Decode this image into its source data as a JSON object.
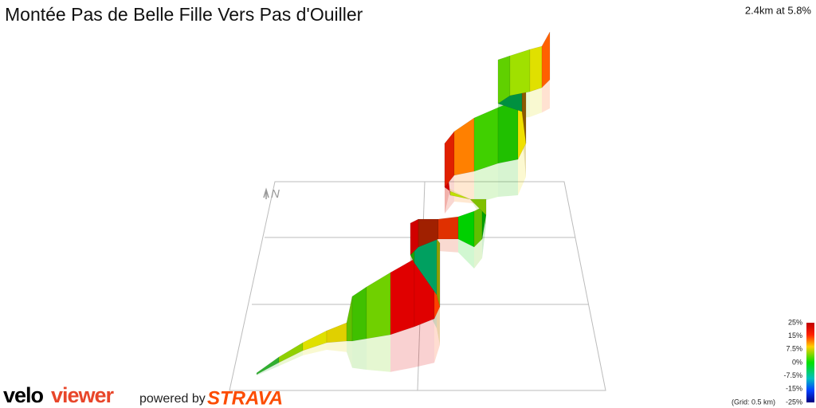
{
  "header": {
    "title": "Montée Pas de Belle Fille Vers Pas d'Ouiller",
    "summary": "2.4km at 5.8%"
  },
  "compass": "N",
  "legend": {
    "labels": [
      "25%",
      "15%",
      "7.5%",
      "0%",
      "-7.5%",
      "-15%",
      "-25%"
    ],
    "grid_note": "(Grid: 0.5 km)"
  },
  "footer": {
    "brand_velo": "velo",
    "brand_viewer": "viewer",
    "powered_by": "powered by",
    "strava": "STRAVA"
  }
}
